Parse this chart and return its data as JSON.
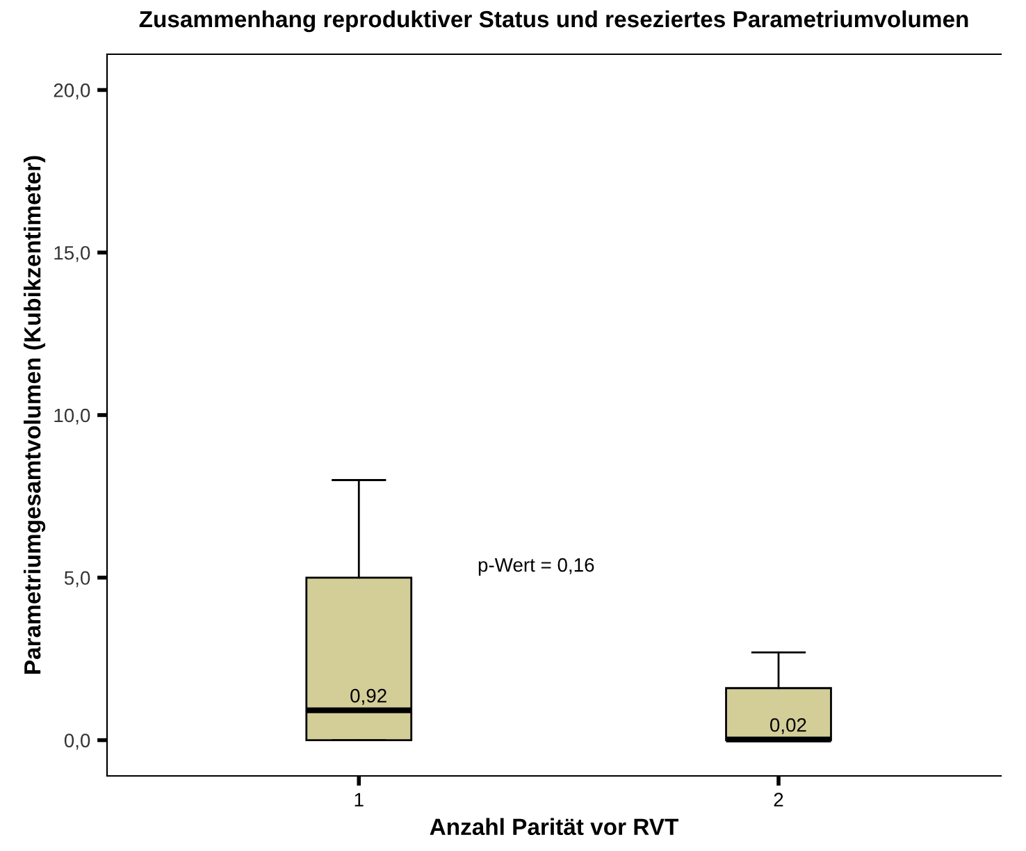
{
  "chart_data": {
    "type": "box",
    "title": "Zusammenhang reproduktiver Status und reseziertes Parametriumvolumen",
    "xlabel": "Anzahl Parität vor RVT",
    "ylabel": "Parametriumgesamtvolumen (Kubikzentimeter)",
    "categories": [
      "1",
      "2"
    ],
    "color": "#d3ce98",
    "boxes": [
      {
        "low": 0,
        "q1": 0,
        "median": 0.92,
        "q3": 5.0,
        "high": 8.0
      },
      {
        "low": 0,
        "q1": 0,
        "median": 0.02,
        "q3": 1.6,
        "high": 2.7
      }
    ],
    "ylim": [
      -1.1,
      21.1
    ],
    "yticks": [
      {
        "value": 0,
        "label": "0,0"
      },
      {
        "value": 5,
        "label": "5,0"
      },
      {
        "value": 10,
        "label": "10,0"
      },
      {
        "value": 15,
        "label": "15,0"
      },
      {
        "value": 20,
        "label": "20,0"
      }
    ],
    "grid": false,
    "annotations": [
      {
        "text": "0,92",
        "x": "1",
        "y": 0.92
      },
      {
        "text": "0,02",
        "x": "2",
        "y": 0.02
      },
      "p-Wert = 0,16"
    ]
  }
}
